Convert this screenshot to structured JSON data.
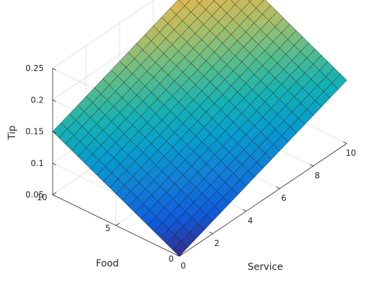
{
  "chart_data": {
    "type": "surface",
    "title": "",
    "x": {
      "label": "Service",
      "min": 0,
      "max": 10,
      "ticks": [
        "0",
        "2",
        "4",
        "6",
        "8",
        "10"
      ]
    },
    "y": {
      "label": "Food",
      "min": 0,
      "max": 10,
      "ticks": [
        "0",
        "5",
        "10"
      ]
    },
    "z": {
      "label": "Tip",
      "min": 0.05,
      "max": 0.25,
      "ticks": [
        "0.05",
        "0.1",
        "0.15",
        "0.2",
        "0.25"
      ]
    },
    "grid": true,
    "colormap": "parula",
    "mesh_size": 21,
    "corner_values": [
      {
        "service": 0,
        "food": 0,
        "tip": 0.05
      },
      {
        "service": 10,
        "food": 0,
        "tip": 0.15
      },
      {
        "service": 0,
        "food": 10,
        "tip": 0.15
      },
      {
        "service": 10,
        "food": 10,
        "tip": 0.25
      }
    ],
    "surface_formula": "tip = 0.05 + 0.01 * (service + food)"
  }
}
